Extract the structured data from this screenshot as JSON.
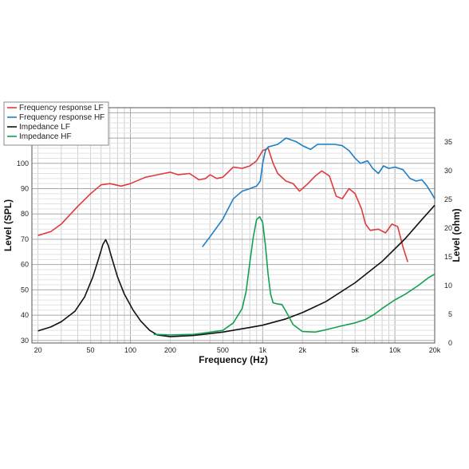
{
  "chart_data": {
    "type": "line",
    "title": "",
    "xlabel": "Frequency (Hz)",
    "ylabel_left": "Level (SPL)",
    "ylabel_right": "Level (ohm)",
    "x_scale": "log",
    "xlim": [
      18,
      20000
    ],
    "ylim_left": [
      29,
      122
    ],
    "ylim_right": [
      0,
      41
    ],
    "grid": true,
    "legend_position": "top-left",
    "x_ticks": [
      {
        "value": 20,
        "label": "20"
      },
      {
        "value": 50,
        "label": "50"
      },
      {
        "value": 100,
        "label": "100"
      },
      {
        "value": 200,
        "label": "200"
      },
      {
        "value": 500,
        "label": "500"
      },
      {
        "value": 1000,
        "label": "1k"
      },
      {
        "value": 2000,
        "label": "2k"
      },
      {
        "value": 5000,
        "label": "5k"
      },
      {
        "value": 10000,
        "label": "10k"
      },
      {
        "value": 20000,
        "label": "20k"
      }
    ],
    "y_ticks_left": [
      30,
      40,
      50,
      60,
      70,
      80,
      90,
      100,
      110
    ],
    "y_ticks_right": [
      0,
      5,
      10,
      15,
      20,
      25,
      30,
      35
    ],
    "series": [
      {
        "name": "Frequency response LF",
        "color": "#e03a3e",
        "axis": "left",
        "points": [
          [
            20,
            71.5
          ],
          [
            25,
            73
          ],
          [
            30,
            76
          ],
          [
            40,
            83
          ],
          [
            50,
            88
          ],
          [
            60,
            91.5
          ],
          [
            70,
            92
          ],
          [
            85,
            91
          ],
          [
            100,
            92
          ],
          [
            130,
            94.5
          ],
          [
            160,
            95.5
          ],
          [
            200,
            96.5
          ],
          [
            230,
            95.5
          ],
          [
            280,
            96
          ],
          [
            330,
            93.5
          ],
          [
            370,
            94
          ],
          [
            400,
            95.5
          ],
          [
            450,
            94
          ],
          [
            500,
            94.5
          ],
          [
            600,
            98.5
          ],
          [
            700,
            98
          ],
          [
            800,
            99
          ],
          [
            900,
            101
          ],
          [
            1000,
            105
          ],
          [
            1100,
            106
          ],
          [
            1200,
            100
          ],
          [
            1300,
            96
          ],
          [
            1500,
            93
          ],
          [
            1700,
            92
          ],
          [
            1900,
            89
          ],
          [
            2200,
            92
          ],
          [
            2500,
            95
          ],
          [
            2800,
            97
          ],
          [
            3200,
            95
          ],
          [
            3600,
            87
          ],
          [
            4000,
            86
          ],
          [
            4500,
            90
          ],
          [
            5000,
            88
          ],
          [
            5600,
            82
          ],
          [
            6000,
            76
          ],
          [
            6500,
            73.5
          ],
          [
            7500,
            74
          ],
          [
            8500,
            72.5
          ],
          [
            9500,
            76
          ],
          [
            10500,
            75
          ],
          [
            11500,
            67
          ],
          [
            12500,
            61
          ]
        ]
      },
      {
        "name": "Frequency response HF",
        "color": "#1e7fc4",
        "axis": "left",
        "points": [
          [
            350,
            67
          ],
          [
            400,
            71
          ],
          [
            500,
            78
          ],
          [
            600,
            86
          ],
          [
            700,
            89
          ],
          [
            800,
            90
          ],
          [
            900,
            91
          ],
          [
            960,
            93
          ],
          [
            1000,
            100
          ],
          [
            1050,
            105
          ],
          [
            1100,
            106.5
          ],
          [
            1300,
            107.5
          ],
          [
            1500,
            110
          ],
          [
            1800,
            108.5
          ],
          [
            2000,
            107
          ],
          [
            2300,
            105.5
          ],
          [
            2600,
            107.5
          ],
          [
            3000,
            107.5
          ],
          [
            3500,
            107.5
          ],
          [
            4000,
            107
          ],
          [
            4500,
            105
          ],
          [
            5000,
            102
          ],
          [
            5500,
            100
          ],
          [
            6200,
            101
          ],
          [
            6800,
            98
          ],
          [
            7500,
            96
          ],
          [
            8200,
            99
          ],
          [
            9000,
            98
          ],
          [
            10000,
            98.5
          ],
          [
            11500,
            97.5
          ],
          [
            13000,
            94
          ],
          [
            14500,
            93
          ],
          [
            16000,
            93.5
          ],
          [
            17500,
            91
          ],
          [
            19000,
            88
          ],
          [
            20000,
            86
          ]
        ]
      },
      {
        "name": "Impedance LF",
        "color": "#111111",
        "axis": "right",
        "points": [
          [
            20,
            2.1
          ],
          [
            25,
            2.8
          ],
          [
            30,
            3.7
          ],
          [
            38,
            5.5
          ],
          [
            45,
            8
          ],
          [
            52,
            11.5
          ],
          [
            58,
            15
          ],
          [
            62,
            17.2
          ],
          [
            65,
            18
          ],
          [
            68,
            17
          ],
          [
            72,
            15
          ],
          [
            80,
            11.5
          ],
          [
            90,
            8.5
          ],
          [
            105,
            5.7
          ],
          [
            120,
            3.8
          ],
          [
            140,
            2.2
          ],
          [
            160,
            1.4
          ],
          [
            200,
            1.1
          ],
          [
            300,
            1.3
          ],
          [
            500,
            1.9
          ],
          [
            800,
            2.7
          ],
          [
            1000,
            3.1
          ],
          [
            1500,
            4.2
          ],
          [
            2000,
            5.3
          ],
          [
            3000,
            7.2
          ],
          [
            5000,
            10.5
          ],
          [
            8000,
            14.2
          ],
          [
            12000,
            18.2
          ],
          [
            16000,
            21.5
          ],
          [
            20000,
            24
          ]
        ]
      },
      {
        "name": "Impedance HF",
        "color": "#13a04e",
        "axis": "right",
        "points": [
          [
            150,
            1.5
          ],
          [
            200,
            1.4
          ],
          [
            300,
            1.5
          ],
          [
            500,
            2.2
          ],
          [
            600,
            3.5
          ],
          [
            700,
            6
          ],
          [
            750,
            9
          ],
          [
            800,
            14
          ],
          [
            850,
            18.5
          ],
          [
            900,
            21.5
          ],
          [
            950,
            22
          ],
          [
            1000,
            21
          ],
          [
            1050,
            17
          ],
          [
            1100,
            12
          ],
          [
            1150,
            8.5
          ],
          [
            1200,
            7
          ],
          [
            1300,
            6.8
          ],
          [
            1400,
            6.7
          ],
          [
            1500,
            5.5
          ],
          [
            1700,
            3.2
          ],
          [
            2000,
            2
          ],
          [
            2500,
            1.9
          ],
          [
            3000,
            2.3
          ],
          [
            4000,
            3
          ],
          [
            5000,
            3.5
          ],
          [
            6000,
            4.1
          ],
          [
            7000,
            5
          ],
          [
            8000,
            6
          ],
          [
            10000,
            7.5
          ],
          [
            12000,
            8.5
          ],
          [
            15000,
            10
          ],
          [
            18000,
            11.4
          ],
          [
            20000,
            12
          ]
        ]
      }
    ]
  }
}
